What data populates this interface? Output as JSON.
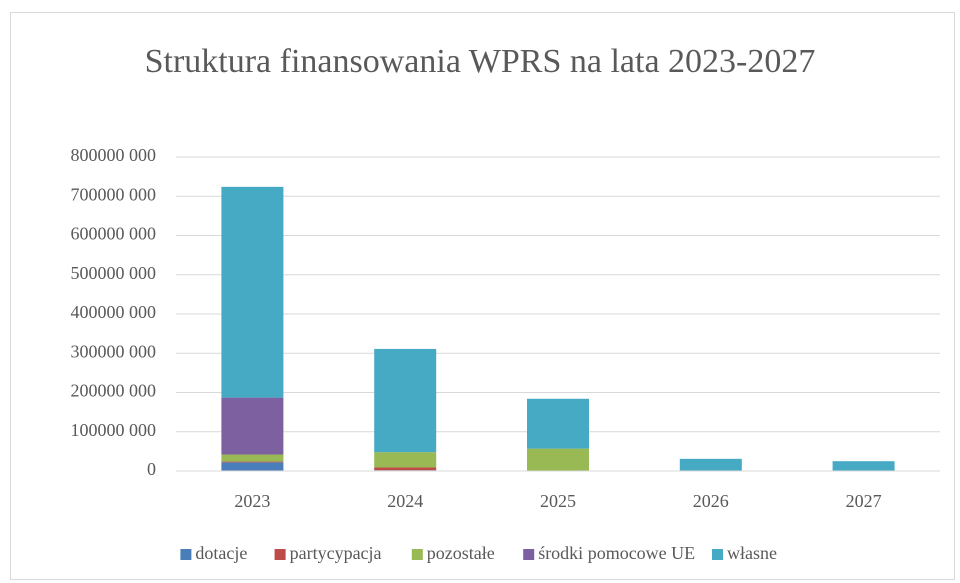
{
  "chart_data": {
    "type": "stacked_bar",
    "title": "Struktura finansowania WPRS na lata 2023-2027",
    "categories": [
      "2023",
      "2024",
      "2025",
      "2026",
      "2027"
    ],
    "series": [
      {
        "name": "dotacje",
        "color": "#4a7ebb",
        "values": [
          22000000,
          2000000,
          0,
          0,
          0
        ]
      },
      {
        "name": "partycypacja",
        "color": "#be4b48",
        "values": [
          2000000,
          7000000,
          0,
          0,
          0
        ]
      },
      {
        "name": "pozostałe",
        "color": "#98b954",
        "values": [
          18000000,
          39000000,
          57000000,
          0,
          0
        ]
      },
      {
        "name": "środki pomocowe UE",
        "color": "#7d60a0",
        "values": [
          145000000,
          0,
          0,
          0,
          0
        ]
      },
      {
        "name": "własne",
        "color": "#46aac5",
        "values": [
          537000000,
          263000000,
          127000000,
          31000000,
          25000000
        ]
      }
    ],
    "ylim": [
      0,
      800000000
    ],
    "yticks": [
      0,
      {
        "value": 100000000,
        "label": "100000 000"
      },
      {
        "value": 200000000,
        "label": "200000 000"
      },
      {
        "value": 300000000,
        "label": "300000 000"
      },
      {
        "value": 400000000,
        "label": "400000 000"
      },
      {
        "value": 500000000,
        "label": "500000 000"
      },
      {
        "value": 600000000,
        "label": "600000 000"
      },
      {
        "value": 700000000,
        "label": "700000 000"
      },
      {
        "value": 800000000,
        "label": "800000 000"
      }
    ],
    "grid": true,
    "legend": "bottom"
  }
}
